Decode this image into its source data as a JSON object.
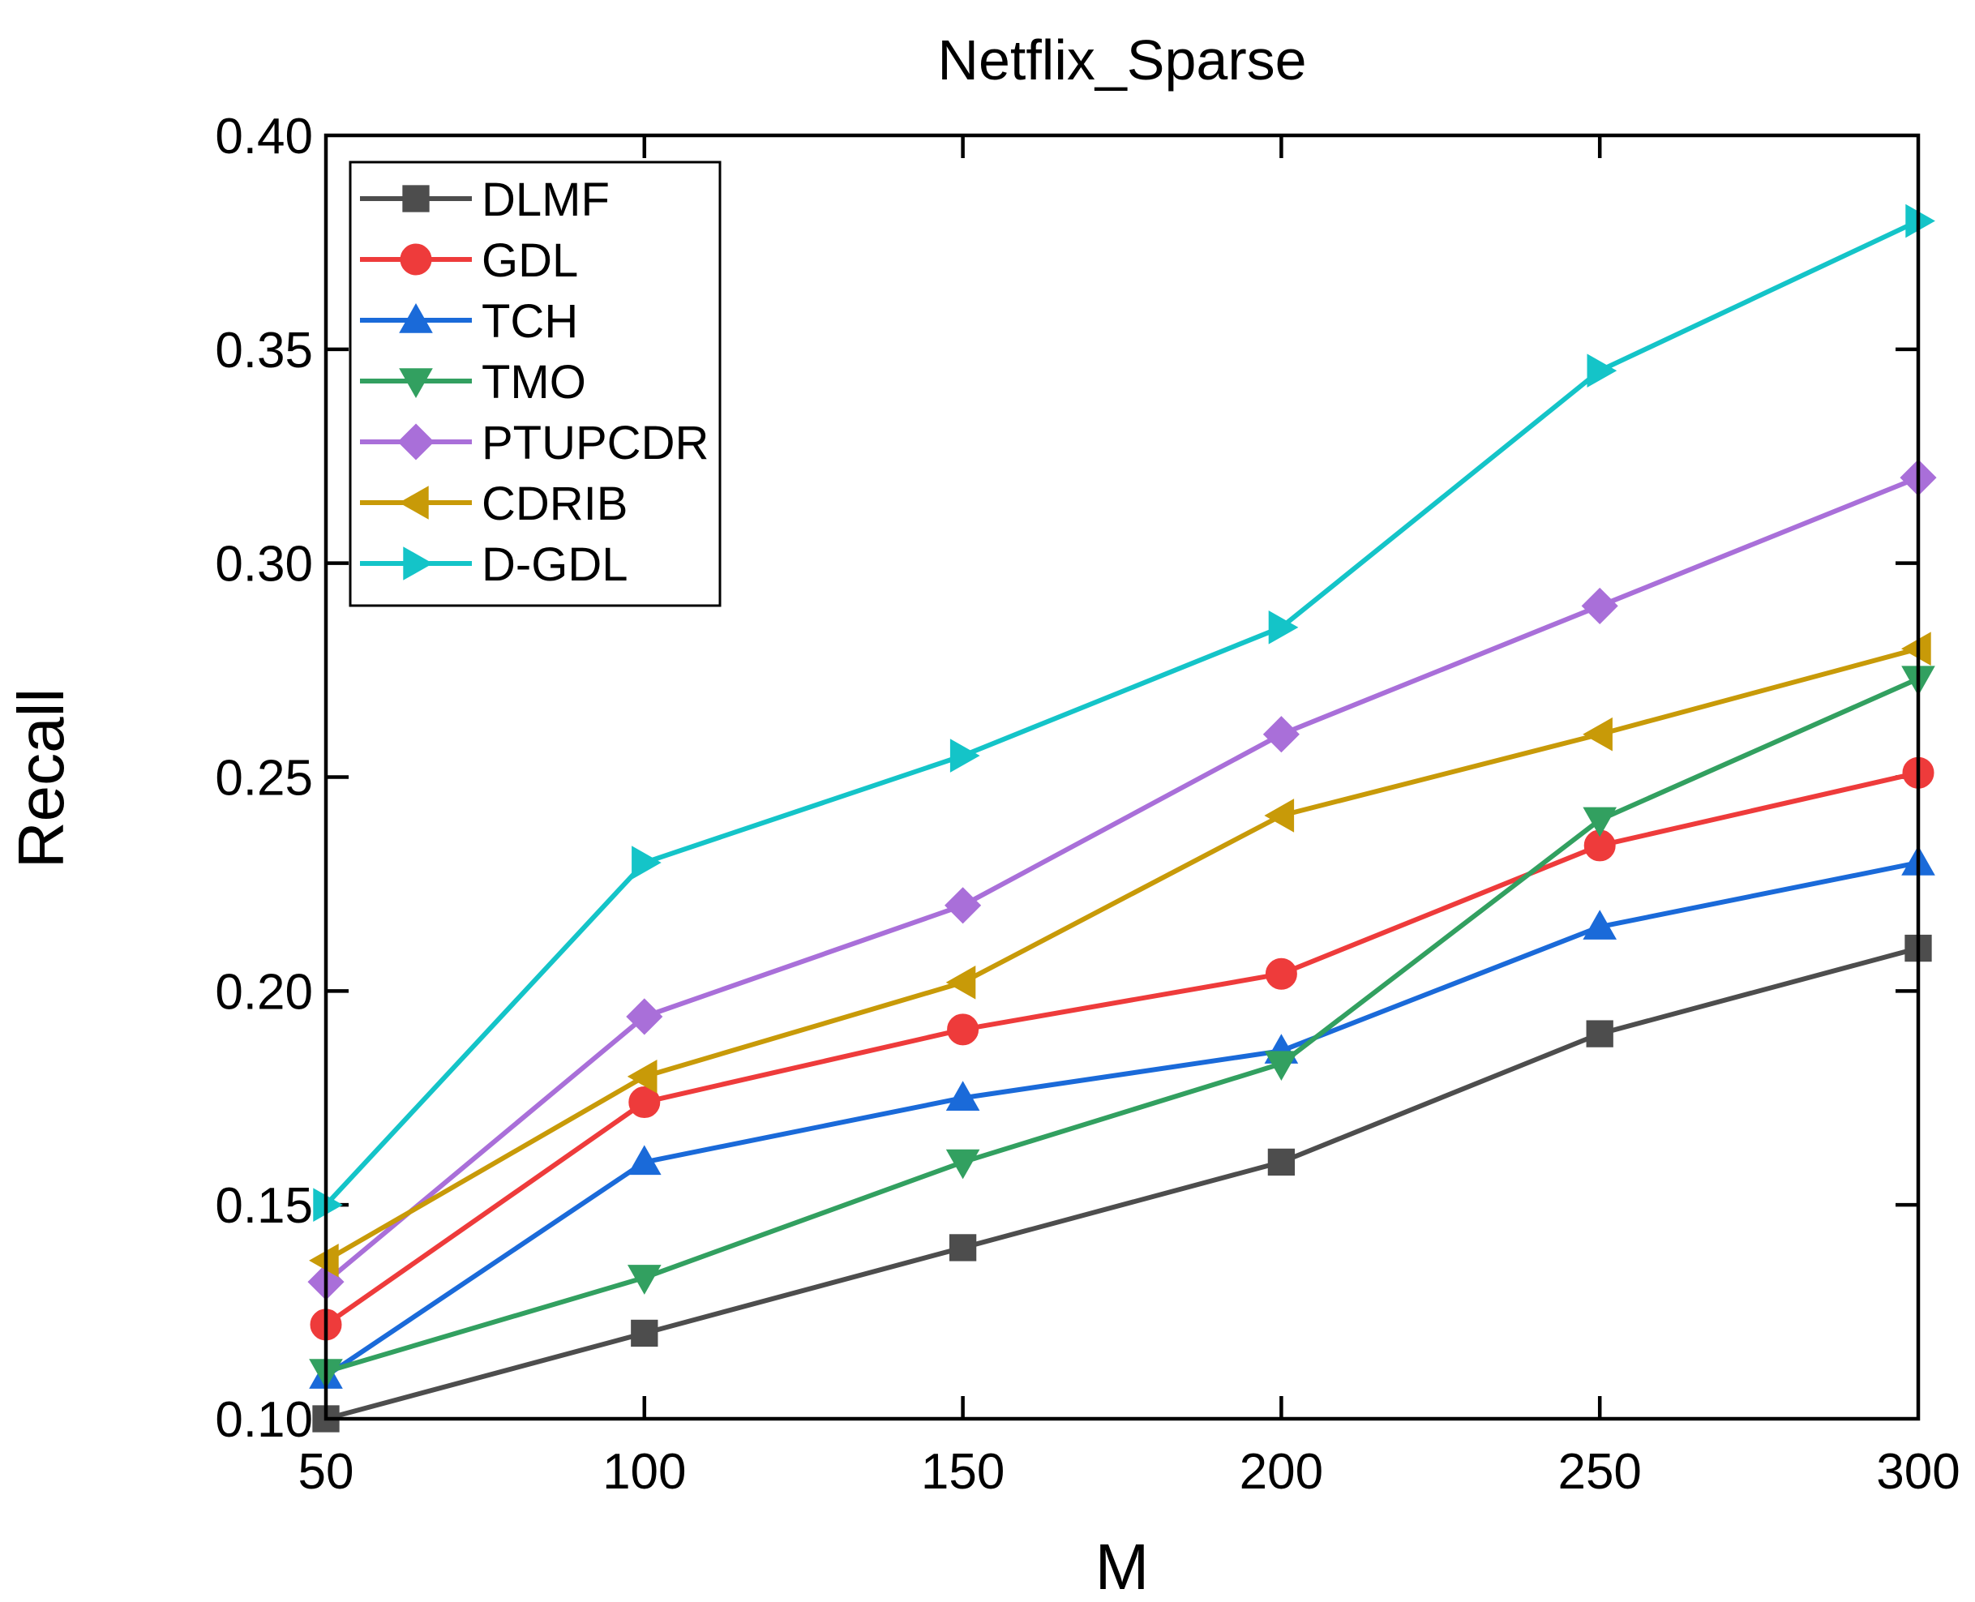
{
  "chart_data": {
    "type": "line",
    "title": "Netflix_Sparse",
    "xlabel": "M",
    "ylabel": "Recall",
    "x": [
      50,
      100,
      150,
      200,
      250,
      300
    ],
    "x_ticks": [
      "50",
      "100",
      "150",
      "200",
      "250",
      "300"
    ],
    "y_ticks": [
      "0.10",
      "0.15",
      "0.20",
      "0.25",
      "0.30",
      "0.35",
      "0.40"
    ],
    "xlim": [
      50,
      300
    ],
    "ylim": [
      0.1,
      0.4
    ],
    "grid": false,
    "legend_position": "top-left",
    "series": [
      {
        "name": "DLMF",
        "marker": "square",
        "color": "#4d4d4d",
        "values": [
          0.1,
          0.12,
          0.14,
          0.16,
          0.19,
          0.21
        ]
      },
      {
        "name": "GDL",
        "marker": "circle",
        "color": "#ee3b3b",
        "values": [
          0.122,
          0.174,
          0.191,
          0.204,
          0.234,
          0.251
        ]
      },
      {
        "name": "TCH",
        "marker": "triangle-up",
        "color": "#1a6ad9",
        "values": [
          0.11,
          0.16,
          0.175,
          0.186,
          0.215,
          0.23
        ]
      },
      {
        "name": "TMO",
        "marker": "triangle-down",
        "color": "#32a060",
        "values": [
          0.111,
          0.133,
          0.16,
          0.183,
          0.24,
          0.273
        ]
      },
      {
        "name": "PTUPCDR",
        "marker": "diamond",
        "color": "#a96fd9",
        "values": [
          0.132,
          0.194,
          0.22,
          0.26,
          0.29,
          0.32
        ]
      },
      {
        "name": "CDRIB",
        "marker": "triangle-left",
        "color": "#c89a08",
        "values": [
          0.137,
          0.18,
          0.202,
          0.241,
          0.26,
          0.28
        ]
      },
      {
        "name": "D-GDL",
        "marker": "triangle-right",
        "color": "#14c4c8",
        "values": [
          0.15,
          0.23,
          0.255,
          0.285,
          0.345,
          0.38
        ]
      }
    ]
  }
}
